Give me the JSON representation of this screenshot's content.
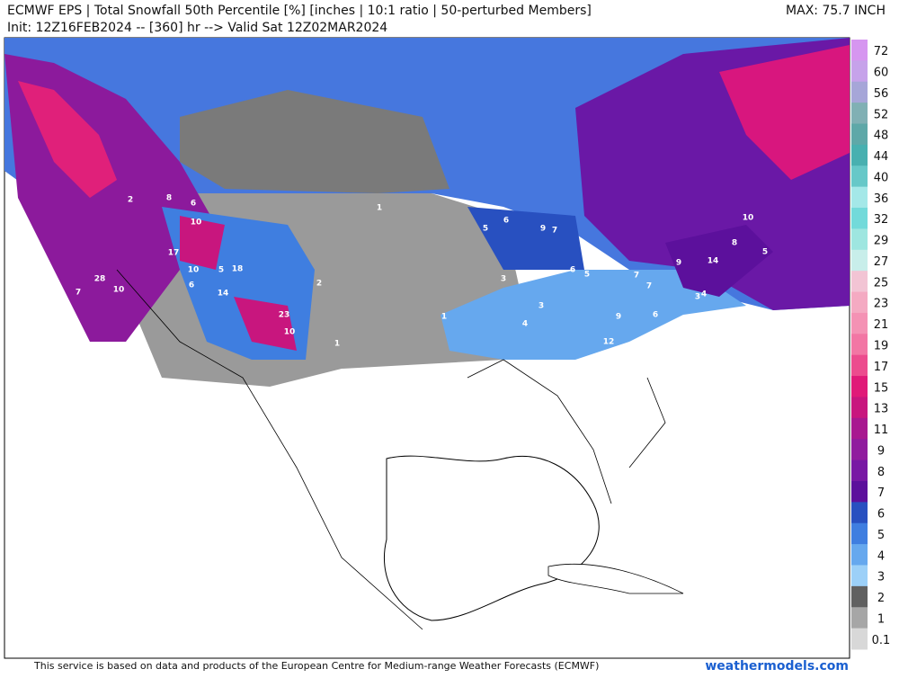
{
  "header": {
    "title": "ECMWF EPS | Total Snowfall 50th Percentile [%] [inches | 10:1 ratio | 50-perturbed Members]",
    "subtitle": "Init: 12Z16FEB2024 -- [360] hr --> Valid Sat 12Z02MAR2024",
    "max": "MAX: 75.7 INCH"
  },
  "colorbar": [
    {
      "label": 72,
      "color": "#d696f0"
    },
    {
      "label": 60,
      "color": "#c6a2ea"
    },
    {
      "label": 56,
      "color": "#a6a6d8"
    },
    {
      "label": 52,
      "color": "#80b0b4"
    },
    {
      "label": 48,
      "color": "#5ea8a8"
    },
    {
      "label": 44,
      "color": "#48b0b0"
    },
    {
      "label": 40,
      "color": "#66c8c8"
    },
    {
      "label": 36,
      "color": "#a4e8e8"
    },
    {
      "label": 32,
      "color": "#72dada"
    },
    {
      "label": 29,
      "color": "#9ee6e0"
    },
    {
      "label": 27,
      "color": "#c8eeea"
    },
    {
      "label": 25,
      "color": "#f2c4d4"
    },
    {
      "label": 23,
      "color": "#f4aac2"
    },
    {
      "label": 21,
      "color": "#f492b4"
    },
    {
      "label": 19,
      "color": "#f276a4"
    },
    {
      "label": 17,
      "color": "#ec4c8e"
    },
    {
      "label": 15,
      "color": "#e01a78"
    },
    {
      "label": 13,
      "color": "#c8167e"
    },
    {
      "label": 11,
      "color": "#a81890"
    },
    {
      "label": 9,
      "color": "#901c9e"
    },
    {
      "label": 8,
      "color": "#7818a4"
    },
    {
      "label": 7,
      "color": "#5c109c"
    },
    {
      "label": 6,
      "color": "#2850c0"
    },
    {
      "label": 5,
      "color": "#3f7ee0"
    },
    {
      "label": 4,
      "color": "#66a8ee"
    },
    {
      "label": 3,
      "color": "#9cd0f8"
    },
    {
      "label": 2,
      "color": "#606060"
    },
    {
      "label": 1,
      "color": "#a6a6a6"
    },
    {
      "label": 0.1,
      "color": "#d8d8d8"
    }
  ],
  "map_labels": [
    2,
    8,
    6,
    10,
    17,
    10,
    5,
    18,
    6,
    14,
    23,
    10,
    7,
    28,
    10,
    1,
    2,
    1,
    6,
    9,
    7,
    5,
    3,
    4,
    3,
    6,
    5,
    7,
    9,
    14,
    12,
    9,
    7,
    10,
    8,
    5,
    4,
    6,
    3,
    1
  ],
  "footer": {
    "notice": "This service is based on data and products of the European Centre for Medium-range Weather Forecasts (ECMWF)",
    "site": "weathermodels.com"
  }
}
